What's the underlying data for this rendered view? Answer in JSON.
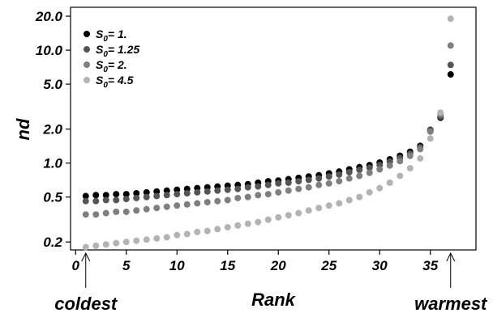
{
  "chart_data": {
    "type": "scatter",
    "title": "",
    "xlabel": "Rank",
    "ylabel": "nd",
    "xlim": [
      -0.5,
      39.5
    ],
    "ylim": [
      0.17,
      24
    ],
    "y_scale": "log",
    "x_ticks": [
      0,
      5,
      10,
      15,
      20,
      25,
      30,
      35
    ],
    "y_ticks": [
      {
        "value": 0.2,
        "label": "0.2"
      },
      {
        "value": 0.5,
        "label": "0.5"
      },
      {
        "value": 1.0,
        "label": "1.0"
      },
      {
        "value": 2.0,
        "label": "2.0"
      },
      {
        "value": 5.0,
        "label": "5.0"
      },
      {
        "value": 10.0,
        "label": "10.0"
      },
      {
        "value": 20.0,
        "label": "20.0"
      }
    ],
    "grid": false,
    "legend_position": "top-left",
    "series": [
      {
        "legend_main": "S",
        "legend_sub": "0",
        "legend_value": "= 1.",
        "color": "#000000",
        "x": [
          1,
          2,
          3,
          4,
          5,
          6,
          7,
          8,
          9,
          10,
          11,
          12,
          13,
          14,
          15,
          16,
          17,
          18,
          19,
          20,
          21,
          22,
          23,
          24,
          25,
          26,
          27,
          28,
          29,
          30,
          31,
          32,
          33,
          34,
          35,
          36,
          37
        ],
        "y": [
          0.51,
          0.52,
          0.52,
          0.53,
          0.53,
          0.54,
          0.55,
          0.56,
          0.57,
          0.58,
          0.59,
          0.6,
          0.61,
          0.62,
          0.63,
          0.64,
          0.65,
          0.67,
          0.69,
          0.7,
          0.72,
          0.74,
          0.76,
          0.78,
          0.81,
          0.84,
          0.88,
          0.92,
          0.96,
          1.01,
          1.08,
          1.16,
          1.26,
          1.42,
          1.97,
          2.52,
          6.1
        ]
      },
      {
        "legend_main": "S",
        "legend_sub": "0",
        "legend_value": "= 1.25",
        "color": "#555555",
        "x": [
          1,
          2,
          3,
          4,
          5,
          6,
          7,
          8,
          9,
          10,
          11,
          12,
          13,
          14,
          15,
          16,
          17,
          18,
          19,
          20,
          21,
          22,
          23,
          24,
          25,
          26,
          27,
          28,
          29,
          30,
          31,
          32,
          33,
          34,
          35,
          36,
          37
        ],
        "y": [
          0.46,
          0.46,
          0.47,
          0.47,
          0.48,
          0.49,
          0.5,
          0.51,
          0.52,
          0.53,
          0.54,
          0.55,
          0.56,
          0.57,
          0.58,
          0.59,
          0.61,
          0.62,
          0.64,
          0.66,
          0.67,
          0.69,
          0.71,
          0.73,
          0.76,
          0.79,
          0.83,
          0.87,
          0.91,
          0.96,
          1.03,
          1.11,
          1.21,
          1.38,
          1.95,
          2.58,
          7.4
        ]
      },
      {
        "legend_main": "S",
        "legend_sub": "0",
        "legend_value": "= 2.",
        "color": "#7f7f7f",
        "x": [
          1,
          2,
          3,
          4,
          5,
          6,
          7,
          8,
          9,
          10,
          11,
          12,
          13,
          14,
          15,
          16,
          17,
          18,
          19,
          20,
          21,
          22,
          23,
          24,
          25,
          26,
          27,
          28,
          29,
          30,
          31,
          32,
          33,
          34,
          35,
          36,
          37
        ],
        "y": [
          0.35,
          0.35,
          0.36,
          0.37,
          0.37,
          0.38,
          0.39,
          0.4,
          0.41,
          0.42,
          0.43,
          0.44,
          0.45,
          0.46,
          0.47,
          0.49,
          0.5,
          0.52,
          0.53,
          0.55,
          0.57,
          0.59,
          0.61,
          0.64,
          0.66,
          0.69,
          0.73,
          0.77,
          0.82,
          0.88,
          0.95,
          1.04,
          1.16,
          1.33,
          1.9,
          2.7,
          11.0
        ]
      },
      {
        "legend_main": "S",
        "legend_sub": "0",
        "legend_value": "= 4.5",
        "color": "#b3b3b3",
        "x": [
          1,
          2,
          3,
          4,
          5,
          6,
          7,
          8,
          9,
          10,
          11,
          12,
          13,
          14,
          15,
          16,
          17,
          18,
          19,
          20,
          21,
          22,
          23,
          24,
          25,
          26,
          27,
          28,
          29,
          30,
          31,
          32,
          33,
          34,
          35,
          36,
          37
        ],
        "y": [
          0.18,
          0.185,
          0.19,
          0.195,
          0.2,
          0.205,
          0.21,
          0.215,
          0.22,
          0.23,
          0.235,
          0.245,
          0.25,
          0.26,
          0.27,
          0.28,
          0.29,
          0.3,
          0.315,
          0.33,
          0.345,
          0.36,
          0.38,
          0.4,
          0.42,
          0.44,
          0.47,
          0.5,
          0.55,
          0.6,
          0.67,
          0.77,
          0.9,
          1.1,
          1.65,
          2.8,
          19.0
        ]
      }
    ],
    "annotations": [
      {
        "text": "coldest",
        "x": 1
      },
      {
        "text": "warmest",
        "x": 37
      }
    ]
  }
}
